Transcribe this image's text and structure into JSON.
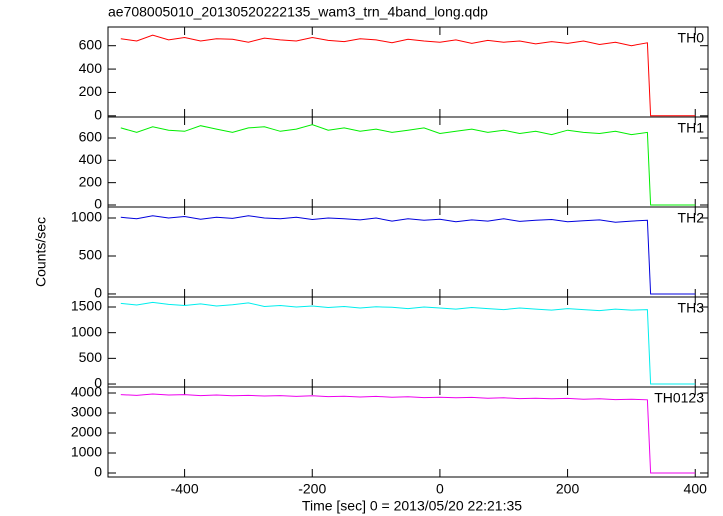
{
  "title": "ae708005010_20130520222135_wam3_trn_4band_long.qdp",
  "y_label": "Counts/sec",
  "x_label": "Time [sec] 0 = 2013/05/20 22:21:35",
  "chart_data": [
    {
      "type": "line",
      "label": "TH0",
      "color": "#ff0000",
      "x": [
        -500,
        -475,
        -450,
        -425,
        -400,
        -375,
        -350,
        -325,
        -300,
        -275,
        -250,
        -225,
        -200,
        -175,
        -150,
        -125,
        -100,
        -75,
        -50,
        -25,
        0,
        25,
        50,
        75,
        100,
        125,
        150,
        175,
        200,
        225,
        250,
        275,
        300,
        325,
        330,
        400
      ],
      "values": [
        660,
        640,
        690,
        650,
        670,
        640,
        660,
        655,
        630,
        665,
        650,
        640,
        670,
        645,
        635,
        660,
        650,
        625,
        655,
        640,
        630,
        650,
        620,
        645,
        630,
        640,
        615,
        635,
        620,
        640,
        610,
        630,
        600,
        625,
        0,
        0
      ],
      "xlim": [
        -520,
        420
      ],
      "ylim": [
        -10,
        760
      ],
      "yticks": [
        0,
        200,
        400,
        600
      ]
    },
    {
      "type": "line",
      "label": "TH1",
      "color": "#00ee00",
      "x": [
        -500,
        -475,
        -450,
        -425,
        -400,
        -375,
        -350,
        -325,
        -300,
        -275,
        -250,
        -225,
        -200,
        -175,
        -150,
        -125,
        -100,
        -75,
        -50,
        -25,
        0,
        25,
        50,
        75,
        100,
        125,
        150,
        175,
        200,
        225,
        250,
        275,
        300,
        325,
        330,
        400
      ],
      "values": [
        690,
        650,
        700,
        670,
        660,
        710,
        680,
        650,
        690,
        700,
        660,
        680,
        720,
        670,
        690,
        660,
        680,
        650,
        670,
        690,
        640,
        660,
        680,
        650,
        670,
        640,
        660,
        630,
        670,
        650,
        640,
        660,
        630,
        650,
        0,
        0
      ],
      "xlim": [
        -520,
        420
      ],
      "ylim": [
        -18,
        788
      ],
      "yticks": [
        0,
        200,
        400,
        600
      ]
    },
    {
      "type": "line",
      "label": "TH2",
      "color": "#0000dd",
      "x": [
        -500,
        -475,
        -450,
        -425,
        -400,
        -375,
        -350,
        -325,
        -300,
        -275,
        -250,
        -225,
        -200,
        -175,
        -150,
        -125,
        -100,
        -75,
        -50,
        -25,
        0,
        25,
        50,
        75,
        100,
        125,
        150,
        175,
        200,
        225,
        250,
        275,
        300,
        325,
        330,
        400
      ],
      "values": [
        1010,
        990,
        1030,
        1000,
        1020,
        985,
        1010,
        995,
        1030,
        1000,
        990,
        1010,
        980,
        1000,
        990,
        975,
        1000,
        960,
        990,
        970,
        985,
        950,
        975,
        960,
        990,
        955,
        970,
        980,
        950,
        965,
        975,
        945,
        960,
        970,
        0,
        0
      ],
      "xlim": [
        -520,
        420
      ],
      "ylim": [
        -40,
        1145
      ],
      "yticks": [
        0,
        500,
        1000
      ]
    },
    {
      "type": "line",
      "label": "TH3",
      "color": "#00eeee",
      "x": [
        -500,
        -475,
        -450,
        -425,
        -400,
        -375,
        -350,
        -325,
        -300,
        -275,
        -250,
        -225,
        -200,
        -175,
        -150,
        -125,
        -100,
        -75,
        -50,
        -25,
        0,
        25,
        50,
        75,
        100,
        125,
        150,
        175,
        200,
        225,
        250,
        275,
        300,
        325,
        330,
        400
      ],
      "values": [
        1570,
        1540,
        1590,
        1550,
        1530,
        1560,
        1520,
        1545,
        1580,
        1510,
        1530,
        1500,
        1520,
        1490,
        1510,
        1480,
        1505,
        1495,
        1470,
        1500,
        1480,
        1460,
        1490,
        1470,
        1450,
        1480,
        1460,
        1440,
        1470,
        1450,
        1430,
        1460,
        1440,
        1450,
        0,
        0
      ],
      "xlim": [
        -520,
        420
      ],
      "ylim": [
        -58,
        1695
      ],
      "yticks": [
        0,
        500,
        1000,
        1500
      ]
    },
    {
      "type": "line",
      "label": "TH0123",
      "color": "#ee00ee",
      "x": [
        -500,
        -475,
        -450,
        -425,
        -400,
        -375,
        -350,
        -325,
        -300,
        -275,
        -250,
        -225,
        -200,
        -175,
        -150,
        -125,
        -100,
        -75,
        -50,
        -25,
        0,
        25,
        50,
        75,
        100,
        125,
        150,
        175,
        200,
        225,
        250,
        275,
        300,
        325,
        330,
        400
      ],
      "values": [
        3920,
        3880,
        3950,
        3900,
        3920,
        3870,
        3900,
        3860,
        3880,
        3850,
        3870,
        3830,
        3860,
        3820,
        3840,
        3800,
        3830,
        3790,
        3810,
        3770,
        3790,
        3760,
        3780,
        3740,
        3760,
        3720,
        3740,
        3710,
        3730,
        3690,
        3710,
        3670,
        3690,
        3660,
        0,
        0
      ],
      "xlim": [
        -520,
        420
      ],
      "ylim": [
        -200,
        4300
      ],
      "yticks": [
        0,
        1000,
        2000,
        3000,
        4000
      ],
      "xticks": [
        -400,
        -200,
        0,
        200,
        400
      ]
    }
  ]
}
